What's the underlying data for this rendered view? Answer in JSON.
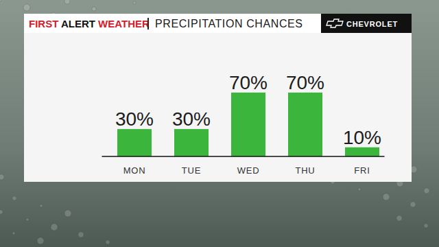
{
  "header": {
    "brand": [
      "FIRST",
      "ALERT",
      "WEATHER"
    ],
    "sponsor": "CHEVROLET"
  },
  "chart_data": {
    "type": "bar",
    "title": "PRECIPITATION CHANCES",
    "categories": [
      "MON",
      "TUE",
      "WED",
      "THU",
      "FRI"
    ],
    "values": [
      30,
      30,
      70,
      70,
      10
    ],
    "value_labels": [
      "30%",
      "30%",
      "70%",
      "70%",
      "10%"
    ],
    "data_labels": true,
    "color": "#3bb53b",
    "ylim": [
      0,
      100
    ],
    "tick_labels": "x",
    "grid": false
  }
}
